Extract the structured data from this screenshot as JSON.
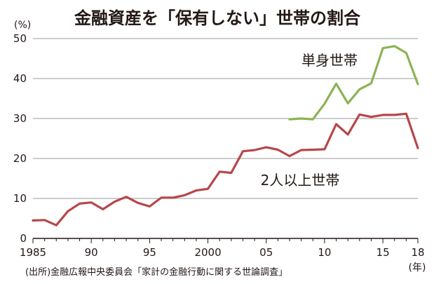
{
  "chart_data": {
    "type": "line",
    "title": "金融資産を「保有しない」世帯の割合",
    "y_unit": "(%)",
    "x_unit": "(年)",
    "source": "(出所)金融広報中央委員会「家計の金融行動に関する世論調査」",
    "xlim": [
      1985,
      2018
    ],
    "ylim": [
      0,
      50
    ],
    "x_ticks": [
      {
        "value": 1985,
        "label": "1985"
      },
      {
        "value": 1990,
        "label": "90"
      },
      {
        "value": 1995,
        "label": "95"
      },
      {
        "value": 2000,
        "label": "2000"
      },
      {
        "value": 2005,
        "label": "05"
      },
      {
        "value": 2010,
        "label": "10"
      },
      {
        "value": 2015,
        "label": "15"
      },
      {
        "value": 2018,
        "label": "18"
      }
    ],
    "y_ticks": [
      {
        "value": 0,
        "label": "0"
      },
      {
        "value": 10,
        "label": "10"
      },
      {
        "value": 20,
        "label": "20"
      },
      {
        "value": 30,
        "label": "30"
      },
      {
        "value": 40,
        "label": "40"
      },
      {
        "value": 50,
        "label": "50"
      }
    ],
    "grid": "horizontal",
    "series": [
      {
        "name": "2人以上世帯",
        "color": "#b5484b",
        "points": [
          [
            1985,
            4.5
          ],
          [
            1986,
            4.6
          ],
          [
            1987,
            3.3
          ],
          [
            1988,
            6.8
          ],
          [
            1989,
            8.7
          ],
          [
            1990,
            9.0
          ],
          [
            1991,
            7.3
          ],
          [
            1992,
            9.2
          ],
          [
            1993,
            10.4
          ],
          [
            1994,
            8.9
          ],
          [
            1995,
            8.0
          ],
          [
            1996,
            10.2
          ],
          [
            1997,
            10.2
          ],
          [
            1998,
            10.8
          ],
          [
            1999,
            12.0
          ],
          [
            2000,
            12.4
          ],
          [
            2001,
            16.7
          ],
          [
            2002,
            16.4
          ],
          [
            2003,
            21.8
          ],
          [
            2004,
            22.1
          ],
          [
            2005,
            22.8
          ],
          [
            2006,
            22.2
          ],
          [
            2007,
            20.6
          ],
          [
            2008,
            22.1
          ],
          [
            2009,
            22.2
          ],
          [
            2010,
            22.3
          ],
          [
            2011,
            28.6
          ],
          [
            2012,
            26.0
          ],
          [
            2013,
            31.0
          ],
          [
            2014,
            30.4
          ],
          [
            2015,
            30.9
          ],
          [
            2016,
            30.9
          ],
          [
            2017,
            31.2
          ],
          [
            2018,
            22.6
          ]
        ]
      },
      {
        "name": "単身世帯",
        "color": "#8cb352",
        "points": [
          [
            2007,
            29.8
          ],
          [
            2008,
            30.0
          ],
          [
            2009,
            29.8
          ],
          [
            2010,
            33.7
          ],
          [
            2011,
            38.7
          ],
          [
            2012,
            33.8
          ],
          [
            2013,
            37.3
          ],
          [
            2014,
            38.8
          ],
          [
            2015,
            47.6
          ],
          [
            2016,
            48.1
          ],
          [
            2017,
            46.4
          ],
          [
            2018,
            38.6
          ]
        ]
      }
    ]
  }
}
